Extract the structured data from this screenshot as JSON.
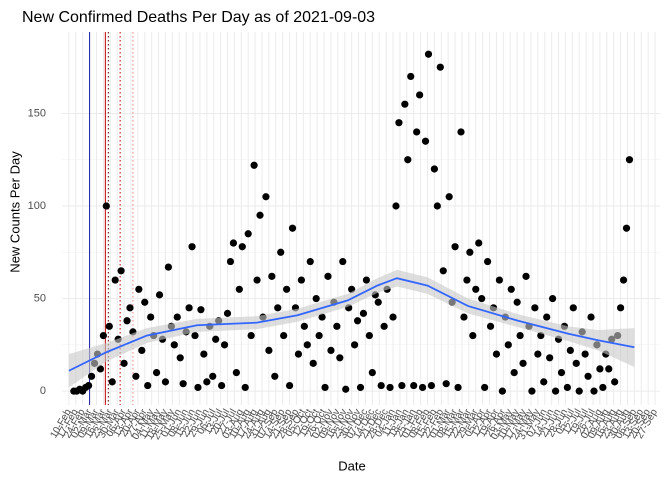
{
  "chart_data": {
    "type": "scatter",
    "title": "New Confirmed Deaths Per Day as of 2021-09-03",
    "x_label": "Date",
    "y_label": "New Counts Per Day",
    "xlim": [
      -7,
      600
    ],
    "ylim": [
      -7.5,
      194
    ],
    "yticks": [
      0,
      50,
      100,
      150
    ],
    "grid": true,
    "point_color": "#000000",
    "xticks": [
      {
        "value": 0,
        "label": "10-Feb"
      },
      {
        "value": 7,
        "label": "17-Feb"
      },
      {
        "value": 14,
        "label": "24-Feb"
      },
      {
        "value": 21,
        "label": "02-Mar"
      },
      {
        "value": 28,
        "label": "09-Mar"
      },
      {
        "value": 35,
        "label": "16-Mar"
      },
      {
        "value": 42,
        "label": "23-Mar"
      },
      {
        "value": 49,
        "label": "30-Mar"
      },
      {
        "value": 56,
        "label": "06-Apr"
      },
      {
        "value": 63,
        "label": "13-Apr"
      },
      {
        "value": 70,
        "label": "20-Apr"
      },
      {
        "value": 77,
        "label": "27-Apr"
      },
      {
        "value": 84,
        "label": "04-May"
      },
      {
        "value": 91,
        "label": "11-May"
      },
      {
        "value": 98,
        "label": "18-May"
      },
      {
        "value": 105,
        "label": "25-May"
      },
      {
        "value": 112,
        "label": "01-Jun"
      },
      {
        "value": 119,
        "label": "08-Jun"
      },
      {
        "value": 126,
        "label": "15-Jun"
      },
      {
        "value": 133,
        "label": "22-Jun"
      },
      {
        "value": 140,
        "label": "29-Jun"
      },
      {
        "value": 147,
        "label": "06-Jul"
      },
      {
        "value": 154,
        "label": "13-Jul"
      },
      {
        "value": 161,
        "label": "20-Jul"
      },
      {
        "value": 168,
        "label": "27-Jul"
      },
      {
        "value": 175,
        "label": "03-Aug"
      },
      {
        "value": 182,
        "label": "10-Aug"
      },
      {
        "value": 189,
        "label": "17-Aug"
      },
      {
        "value": 196,
        "label": "24-Aug"
      },
      {
        "value": 203,
        "label": "31-Aug"
      },
      {
        "value": 210,
        "label": "07-Sep"
      },
      {
        "value": 217,
        "label": "14-Sep"
      },
      {
        "value": 224,
        "label": "21-Sep"
      },
      {
        "value": 231,
        "label": "28-Sep"
      },
      {
        "value": 238,
        "label": "05-Oct"
      },
      {
        "value": 245,
        "label": "12-Oct"
      },
      {
        "value": 252,
        "label": "19-Oct"
      },
      {
        "value": 259,
        "label": "26-Oct"
      },
      {
        "value": 266,
        "label": "02-Nov"
      },
      {
        "value": 273,
        "label": "09-Nov"
      },
      {
        "value": 280,
        "label": "16-Nov"
      },
      {
        "value": 287,
        "label": "23-Nov"
      },
      {
        "value": 294,
        "label": "30-Nov"
      },
      {
        "value": 301,
        "label": "07-Dec"
      },
      {
        "value": 308,
        "label": "14-Dec"
      },
      {
        "value": 315,
        "label": "21-Dec"
      },
      {
        "value": 322,
        "label": "28-Dec"
      },
      {
        "value": 329,
        "label": "04-Jan"
      },
      {
        "value": 336,
        "label": "11-Jan"
      },
      {
        "value": 343,
        "label": "18-Jan"
      },
      {
        "value": 350,
        "label": "25-Jan"
      },
      {
        "value": 357,
        "label": "01-Feb"
      },
      {
        "value": 364,
        "label": "08-Feb"
      },
      {
        "value": 371,
        "label": "15-Feb"
      },
      {
        "value": 378,
        "label": "22-Feb"
      },
      {
        "value": 385,
        "label": "01-Mar"
      },
      {
        "value": 392,
        "label": "08-Mar"
      },
      {
        "value": 399,
        "label": "15-Mar"
      },
      {
        "value": 406,
        "label": "22-Mar"
      },
      {
        "value": 413,
        "label": "29-Mar"
      },
      {
        "value": 420,
        "label": "05-Apr"
      },
      {
        "value": 427,
        "label": "12-Apr"
      },
      {
        "value": 434,
        "label": "19-Apr"
      },
      {
        "value": 441,
        "label": "26-Apr"
      },
      {
        "value": 448,
        "label": "03-May"
      },
      {
        "value": 455,
        "label": "10-May"
      },
      {
        "value": 462,
        "label": "17-May"
      },
      {
        "value": 469,
        "label": "24-May"
      },
      {
        "value": 476,
        "label": "31-May"
      },
      {
        "value": 483,
        "label": "07-Jun"
      },
      {
        "value": 490,
        "label": "14-Jun"
      },
      {
        "value": 497,
        "label": "21-Jun"
      },
      {
        "value": 504,
        "label": "28-Jun"
      },
      {
        "value": 511,
        "label": "05-Jul"
      },
      {
        "value": 518,
        "label": "12-Jul"
      },
      {
        "value": 525,
        "label": "19-Jul"
      },
      {
        "value": 532,
        "label": "26-Jul"
      },
      {
        "value": 539,
        "label": "02-Aug"
      },
      {
        "value": 546,
        "label": "09-Aug"
      },
      {
        "value": 553,
        "label": "16-Aug"
      },
      {
        "value": 560,
        "label": "23-Aug"
      },
      {
        "value": 567,
        "label": "30-Aug"
      },
      {
        "value": 574,
        "label": "06-Sep"
      },
      {
        "value": 581,
        "label": "13-Sep"
      },
      {
        "value": 588,
        "label": "20-Sep"
      },
      {
        "value": 595,
        "label": "27-Sep"
      }
    ],
    "vlines": [
      {
        "value": 21,
        "color": "#1a1aa0",
        "dash": false
      },
      {
        "value": 37,
        "color": "#c00000",
        "dash": false
      },
      {
        "value": 40,
        "color": "#600000",
        "dash": true
      },
      {
        "value": 52,
        "color": "#c00000",
        "dash": true
      },
      {
        "value": 65,
        "color": "#f08080",
        "dash": true
      }
    ],
    "x": [
      5,
      8,
      11,
      14,
      17,
      20,
      23,
      26,
      29,
      32,
      35,
      38,
      41,
      44,
      47,
      50,
      53,
      56,
      59,
      62,
      65,
      68,
      71,
      74,
      77,
      80,
      83,
      86,
      89,
      92,
      95,
      98,
      101,
      104,
      107,
      110,
      113,
      116,
      119,
      122,
      125,
      128,
      131,
      134,
      137,
      140,
      143,
      146,
      149,
      152,
      155,
      158,
      161,
      164,
      167,
      170,
      173,
      176,
      179,
      182,
      185,
      188,
      191,
      194,
      197,
      200,
      203,
      206,
      209,
      212,
      215,
      218,
      221,
      224,
      227,
      230,
      233,
      236,
      239,
      242,
      245,
      248,
      251,
      254,
      257,
      260,
      263,
      266,
      269,
      272,
      275,
      278,
      281,
      284,
      287,
      290,
      293,
      296,
      299,
      302,
      305,
      308,
      311,
      314,
      317,
      320,
      323,
      326,
      329,
      332,
      335,
      338,
      341,
      344,
      347,
      350,
      353,
      356,
      359,
      362,
      365,
      368,
      371,
      374,
      377,
      380,
      383,
      386,
      389,
      392,
      395,
      398,
      401,
      404,
      407,
      410,
      413,
      416,
      419,
      422,
      425,
      428,
      431,
      434,
      437,
      440,
      443,
      446,
      449,
      452,
      455,
      458,
      461,
      464,
      467,
      470,
      473,
      476,
      479,
      482,
      485,
      488,
      491,
      494,
      497,
      500,
      503,
      506,
      509,
      512,
      515,
      518,
      521,
      524,
      527,
      530,
      533,
      536,
      539,
      542,
      545,
      548,
      551,
      554,
      557,
      560,
      563,
      566,
      569
    ],
    "values": [
      0,
      0,
      1,
      0,
      2,
      3,
      8,
      15,
      20,
      12,
      30,
      100,
      35,
      5,
      60,
      28,
      65,
      15,
      38,
      45,
      32,
      8,
      55,
      22,
      48,
      3,
      40,
      30,
      10,
      52,
      28,
      5,
      67,
      35,
      25,
      40,
      18,
      4,
      32,
      45,
      78,
      30,
      2,
      44,
      20,
      5,
      35,
      8,
      28,
      38,
      3,
      25,
      42,
      70,
      80,
      10,
      55,
      78,
      2,
      85,
      30,
      122,
      60,
      95,
      40,
      105,
      22,
      62,
      8,
      45,
      75,
      30,
      55,
      3,
      88,
      45,
      20,
      60,
      35,
      25,
      70,
      15,
      50,
      30,
      40,
      2,
      62,
      22,
      48,
      35,
      18,
      70,
      1,
      45,
      55,
      25,
      38,
      2,
      42,
      60,
      30,
      10,
      52,
      48,
      3,
      35,
      55,
      2,
      40,
      100,
      145,
      3,
      155,
      125,
      170,
      3,
      140,
      160,
      2,
      135,
      182,
      3,
      120,
      100,
      175,
      65,
      4,
      105,
      48,
      78,
      2,
      140,
      40,
      60,
      75,
      30,
      55,
      80,
      50,
      2,
      70,
      35,
      45,
      20,
      60,
      0,
      40,
      25,
      55,
      10,
      48,
      30,
      15,
      62,
      35,
      0,
      45,
      20,
      30,
      5,
      40,
      18,
      50,
      0,
      28,
      10,
      35,
      2,
      22,
      45,
      15,
      0,
      32,
      20,
      8,
      40,
      0,
      25,
      12,
      2,
      20,
      12,
      28,
      5,
      30,
      45,
      60,
      88,
      125
    ],
    "smooth": {
      "color": "#3366ff",
      "band_color": "#c8c8c8",
      "x": [
        0,
        38,
        79,
        130,
        191,
        232,
        283,
        313,
        333,
        364,
        405,
        456,
        507,
        537,
        574
      ],
      "values": [
        11,
        21,
        30,
        35.6,
        37,
        41,
        49,
        57,
        61,
        57,
        46,
        38,
        31,
        27.5,
        23.7
      ],
      "lower": [
        2,
        16,
        26,
        32,
        33.5,
        37.5,
        45.5,
        53,
        56.5,
        52.5,
        42,
        34.5,
        27,
        22,
        13
      ],
      "upper": [
        20,
        26,
        34,
        39,
        40.5,
        44.5,
        52.5,
        61,
        65.5,
        61.5,
        50,
        41.5,
        35,
        33,
        34
      ]
    }
  }
}
